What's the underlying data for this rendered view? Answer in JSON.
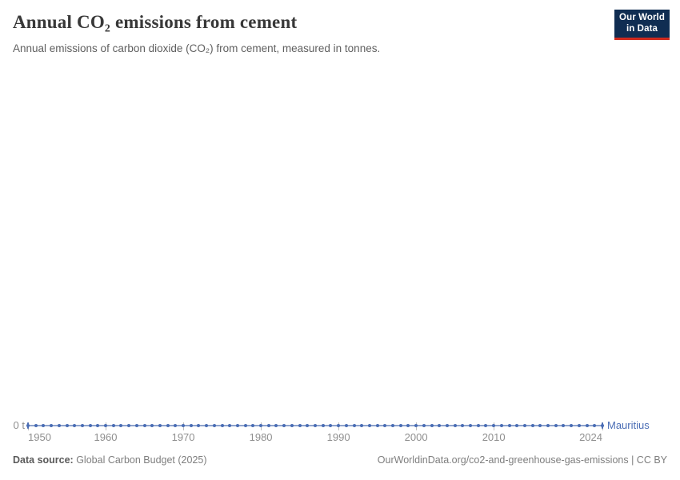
{
  "header": {
    "title": "Annual CO₂ emissions from cement",
    "subtitle": "Annual emissions of carbon dioxide (CO₂) from cement, measured in tonnes.",
    "logo": {
      "line1": "Our World",
      "line2": "in Data"
    }
  },
  "chart": {
    "y_zero_label": "0 t",
    "entity_label": "Mauritius"
  },
  "chart_data": {
    "type": "line",
    "title": "Annual CO₂ emissions from cement",
    "subtitle": "Annual emissions of carbon dioxide (CO₂) from cement, measured in tonnes.",
    "unit": "t",
    "x_start": 1950,
    "x_end": 2024,
    "x_step": 1,
    "series": [
      {
        "name": "Mauritius",
        "constant_value": 0
      }
    ],
    "note": "All yearly values from 1950 to 2024 are 0 t; the line with per-year markers lies flat on the zero baseline.",
    "x_tick_labels": [
      "1950",
      "1960",
      "1970",
      "1980",
      "1990",
      "2000",
      "2010",
      "2024"
    ],
    "y_tick_labels": [
      "0 t"
    ],
    "ylim": [
      0,
      0
    ],
    "grid": false,
    "legend_position": "end-of-line"
  },
  "colors": {
    "line": "#4a6db5",
    "line_light": "#8ea3cc",
    "entity_label": "#4a6db5",
    "logo_bg": "#102d52",
    "logo_stripe": "#d02a1e"
  },
  "footer": {
    "source_label": "Data source:",
    "source_value": " Global Carbon Budget (2025)",
    "attribution": "OurWorldinData.org/co2-and-greenhouse-gas-emissions | CC BY"
  }
}
